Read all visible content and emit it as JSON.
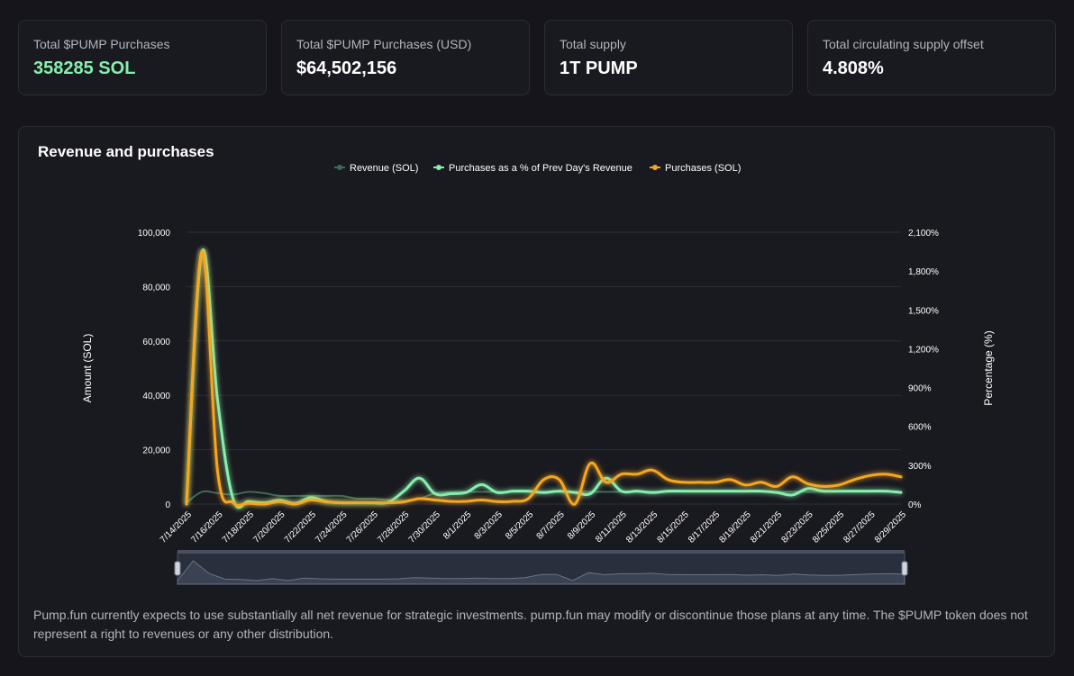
{
  "stats": [
    {
      "label": "Total $PUMP Purchases",
      "value": "358285 SOL"
    },
    {
      "label": "Total $PUMP Purchases (USD)",
      "value": "$64,502,156"
    },
    {
      "label": "Total supply",
      "value": "1T PUMP"
    },
    {
      "label": "Total circulating supply offset",
      "value": "4.808%"
    }
  ],
  "panel": {
    "title": "Revenue and purchases",
    "disclaimer": "Pump.fun currently expects to use substantially all net revenue for strategic investments. pump.fun may modify or discontinue those plans at any time. The $PUMP token does not represent a right to revenues or any other distribution."
  },
  "colors": {
    "revenue": "#3d6b57",
    "percent": "#86efac",
    "purchases": "#f5a623",
    "accent_green": "#86efac"
  },
  "chart_data": {
    "type": "line",
    "title": "Revenue and purchases",
    "legend_position": "top-center",
    "grid": true,
    "x": [
      "7/14/2025",
      "7/15/2025",
      "7/16/2025",
      "7/17/2025",
      "7/18/2025",
      "7/19/2025",
      "7/20/2025",
      "7/21/2025",
      "7/22/2025",
      "7/23/2025",
      "7/24/2025",
      "7/25/2025",
      "7/26/2025",
      "7/27/2025",
      "7/28/2025",
      "7/29/2025",
      "7/30/2025",
      "7/31/2025",
      "8/1/2025",
      "8/2/2025",
      "8/3/2025",
      "8/4/2025",
      "8/5/2025",
      "8/6/2025",
      "8/7/2025",
      "8/8/2025",
      "8/9/2025",
      "8/10/2025",
      "8/11/2025",
      "8/12/2025",
      "8/13/2025",
      "8/14/2025",
      "8/15/2025",
      "8/16/2025",
      "8/17/2025",
      "8/18/2025",
      "8/19/2025",
      "8/20/2025",
      "8/21/2025",
      "8/22/2025",
      "8/23/2025",
      "8/24/2025",
      "8/25/2025",
      "8/26/2025",
      "8/27/2025",
      "8/28/2025",
      "8/29/2025"
    ],
    "x_tick_labels": [
      "7/14/2025",
      "7/16/2025",
      "7/18/2025",
      "7/20/2025",
      "7/22/2025",
      "7/24/2025",
      "7/26/2025",
      "7/28/2025",
      "7/30/2025",
      "8/1/2025",
      "8/3/2025",
      "8/5/2025",
      "8/7/2025",
      "8/9/2025",
      "8/11/2025",
      "8/13/2025",
      "8/15/2025",
      "8/17/2025",
      "8/19/2025",
      "8/21/2025",
      "8/23/2025",
      "8/25/2025",
      "8/27/2025",
      "8/29/2025"
    ],
    "y_left": {
      "label": "Amount (SOL)",
      "range": [
        0,
        100000
      ],
      "ticks": [
        "0",
        "20,000",
        "40,000",
        "60,000",
        "80,000",
        "100,000"
      ]
    },
    "y_right": {
      "label": "Percentage (%)",
      "range": [
        0,
        2100
      ],
      "ticks": [
        "0%",
        "300%",
        "600%",
        "900%",
        "1,200%",
        "1,500%",
        "1,800%",
        "2,100%"
      ]
    },
    "series": [
      {
        "name": "Revenue (SOL)",
        "axis": "left",
        "values": [
          500,
          4500,
          4000,
          3500,
          4500,
          4000,
          3000,
          3000,
          3000,
          3000,
          3000,
          2000,
          2000,
          1500,
          1500,
          2000,
          4000,
          4500,
          4500,
          4500,
          4500,
          4500,
          4500,
          4500,
          4500,
          4500,
          4500,
          4500,
          4500,
          4500,
          4500,
          4500,
          4500,
          4500,
          4500,
          4500,
          4500,
          4500,
          4500,
          4500,
          4500,
          4500,
          4500,
          4500,
          4500,
          4500,
          4500
        ]
      },
      {
        "name": "Purchases as a % of Prev Day's Revenue",
        "axis": "right",
        "values": [
          0,
          1950,
          800,
          40,
          20,
          10,
          30,
          5,
          50,
          20,
          10,
          10,
          10,
          15,
          100,
          200,
          80,
          80,
          90,
          150,
          90,
          100,
          100,
          90,
          100,
          90,
          80,
          200,
          100,
          100,
          90,
          100,
          100,
          100,
          100,
          100,
          100,
          100,
          90,
          70,
          120,
          100,
          100,
          100,
          100,
          100,
          90
        ]
      },
      {
        "name": "Purchases (SOL)",
        "axis": "left",
        "values": [
          0,
          93000,
          12000,
          500,
          300,
          0,
          900,
          0,
          1500,
          800,
          500,
          500,
          500,
          500,
          800,
          2000,
          1500,
          1000,
          1000,
          1500,
          900,
          1000,
          2000,
          9000,
          9000,
          0,
          15000,
          8000,
          11000,
          11000,
          12500,
          9000,
          8000,
          8000,
          8000,
          9000,
          7000,
          8000,
          6500,
          10000,
          7500,
          6500,
          7000,
          9000,
          10500,
          11000,
          10000
        ]
      }
    ]
  }
}
